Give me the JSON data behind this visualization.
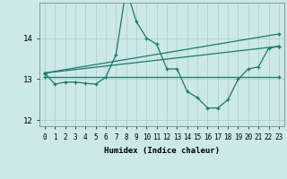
{
  "xlabel": "Humidex (Indice chaleur)",
  "ylabel": "",
  "bg_color": "#cce8e8",
  "grid_color": "#aacccc",
  "line_color": "#1a7a6a",
  "x_ticks": [
    0,
    1,
    2,
    3,
    4,
    5,
    6,
    7,
    8,
    9,
    10,
    11,
    12,
    13,
    14,
    15,
    16,
    17,
    18,
    19,
    20,
    21,
    22,
    23
  ],
  "ylim": [
    11.85,
    14.85
  ],
  "yticks": [
    12,
    13,
    14
  ],
  "line1_x": [
    0,
    1,
    2,
    3,
    4,
    5,
    6,
    7,
    8,
    9,
    10,
    11,
    12,
    13,
    14,
    15,
    16,
    17,
    18,
    19,
    20,
    21,
    22,
    23
  ],
  "line1_y": [
    13.15,
    12.88,
    12.93,
    12.93,
    12.9,
    12.88,
    13.05,
    13.6,
    15.2,
    14.4,
    14.0,
    13.85,
    13.25,
    13.25,
    12.7,
    12.55,
    12.3,
    12.3,
    12.5,
    13.0,
    13.25,
    13.3,
    13.75,
    13.8
  ],
  "line2_x": [
    0,
    23
  ],
  "line2_y": [
    13.05,
    13.05
  ],
  "line3_x": [
    0,
    23
  ],
  "line3_y": [
    13.15,
    13.8
  ],
  "line4_x": [
    0,
    23
  ],
  "line4_y": [
    13.15,
    14.1
  ],
  "marker_size": 3.5,
  "linewidth": 0.9
}
